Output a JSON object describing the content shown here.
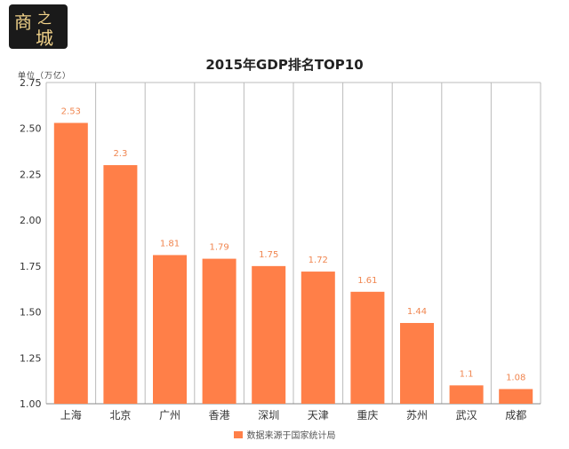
{
  "logo": {
    "glyphs": [
      "商",
      "之",
      "城"
    ]
  },
  "chart_data": {
    "type": "bar",
    "title": "2015年GDP排名TOP10",
    "unit_label": "单位（万亿）",
    "categories": [
      "上海",
      "北京",
      "广州",
      "香港",
      "深圳",
      "天津",
      "重庆",
      "苏州",
      "武汉",
      "成都"
    ],
    "series": [
      {
        "name": "数据来源于国家统计局",
        "values": [
          2.53,
          2.3,
          1.81,
          1.79,
          1.75,
          1.72,
          1.61,
          1.44,
          1.1,
          1.08
        ]
      }
    ],
    "y_ticks": [
      "1.00",
      "1.25",
      "1.50",
      "1.75",
      "2.00",
      "2.25",
      "2.50",
      "2.75"
    ],
    "ylim": [
      1.0,
      2.75
    ],
    "grid": "vertical",
    "legend_position": "bottom",
    "colors": {
      "bar": "#ff7f48",
      "label": "#f0854f",
      "grid": "#bbbbbb"
    }
  }
}
